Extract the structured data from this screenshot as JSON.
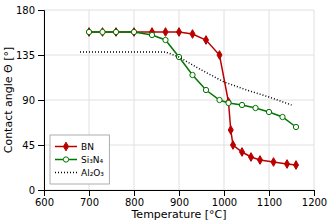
{
  "chart_data": {
    "type": "line",
    "title": "",
    "xlabel": "Temperature [°C]",
    "ylabel": "Contact angle Θ [°]",
    "xlim": [
      600,
      1200
    ],
    "ylim": [
      0,
      180
    ],
    "xticks": [
      600,
      700,
      800,
      900,
      1000,
      1100,
      1200
    ],
    "yticks": [
      0,
      45,
      90,
      135,
      180
    ],
    "grid": true,
    "legend": "lower left",
    "series": [
      {
        "name": "BN",
        "color": "#bb0000",
        "marker": "diamond",
        "line_style": "solid",
        "x": [
          700,
          730,
          760,
          800,
          840,
          870,
          900,
          930,
          960,
          990,
          1010,
          1015,
          1020,
          1040,
          1060,
          1080,
          1110,
          1140,
          1160
        ],
        "values": [
          158,
          158,
          158,
          158,
          158,
          158,
          158,
          156,
          150,
          135,
          88,
          60,
          45,
          38,
          33,
          30,
          28,
          26,
          25
        ]
      },
      {
        "name": "Si₃N₄",
        "color": "#007700",
        "marker": "circle",
        "line_style": "solid",
        "x": [
          700,
          730,
          760,
          800,
          840,
          870,
          900,
          930,
          960,
          990,
          1010,
          1040,
          1070,
          1100,
          1130,
          1160
        ],
        "values": [
          158,
          158,
          158,
          158,
          155,
          150,
          133,
          115,
          100,
          90,
          87,
          85,
          82,
          78,
          73,
          63
        ]
      },
      {
        "name": "Al₂O₃",
        "color": "#000000",
        "marker": "none",
        "line_style": "dotted",
        "x": [
          680,
          800,
          870,
          900,
          950,
          1000,
          1050,
          1100,
          1150
        ],
        "values": [
          138,
          138,
          138,
          133,
          120,
          108,
          100,
          93,
          85
        ]
      }
    ]
  }
}
